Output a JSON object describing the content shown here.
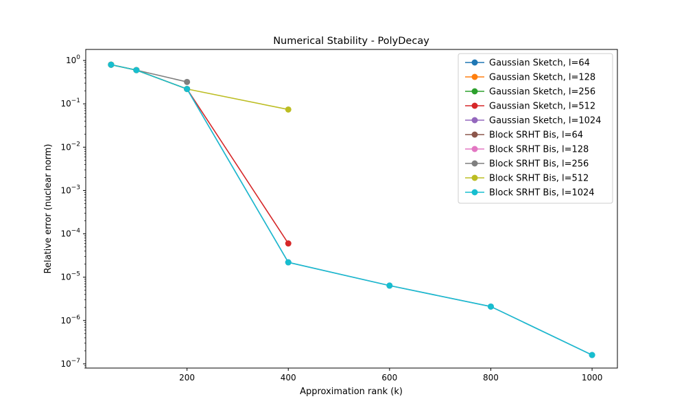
{
  "chart_data": {
    "type": "line",
    "title": "Numerical Stability - PolyDecay",
    "xlabel": "Approximation rank (k)",
    "ylabel": "Relative error (nuclear norm)",
    "y_scale": "log",
    "xlim": [
      0,
      1050
    ],
    "ylim": [
      8e-08,
      1.8
    ],
    "x_ticks": [
      200,
      400,
      600,
      800,
      1000
    ],
    "y_ticks": [
      {
        "value": 1,
        "base": "10",
        "exp": "0"
      },
      {
        "value": 0.1,
        "base": "10",
        "exp": "−1"
      },
      {
        "value": 0.01,
        "base": "10",
        "exp": "−2"
      },
      {
        "value": 0.001,
        "base": "10",
        "exp": "−3"
      },
      {
        "value": 0.0001,
        "base": "10",
        "exp": "−4"
      },
      {
        "value": 1e-05,
        "base": "10",
        "exp": "−5"
      },
      {
        "value": 1e-06,
        "base": "10",
        "exp": "−6"
      },
      {
        "value": 1e-07,
        "base": "10",
        "exp": "−7"
      }
    ],
    "grid": false,
    "legend_position": "top-right",
    "series": [
      {
        "name": "Gaussian Sketch, l=64",
        "color": "#1f77b4",
        "x": [
          50
        ],
        "y": [
          0.8
        ]
      },
      {
        "name": "Gaussian Sketch, l=128",
        "color": "#ff7f0e",
        "x": [
          50,
          100
        ],
        "y": [
          0.8,
          0.6
        ]
      },
      {
        "name": "Gaussian Sketch, l=256",
        "color": "#2ca02c",
        "x": [
          50,
          100,
          200
        ],
        "y": [
          0.8,
          0.6,
          0.22
        ]
      },
      {
        "name": "Gaussian Sketch, l=512",
        "color": "#d62728",
        "x": [
          50,
          100,
          200,
          400
        ],
        "y": [
          0.8,
          0.6,
          0.22,
          6e-05
        ]
      },
      {
        "name": "Gaussian Sketch, l=1024",
        "color": "#9467bd",
        "x": [
          50,
          100,
          200,
          400,
          600,
          800,
          1000
        ],
        "y": [
          0.8,
          0.6,
          0.22,
          2.2e-05,
          6.4e-06,
          2.1e-06,
          1.6e-07
        ]
      },
      {
        "name": "Block SRHT Bis, l=64",
        "color": "#8c564b",
        "x": [
          50
        ],
        "y": [
          0.8
        ]
      },
      {
        "name": "Block SRHT Bis, l=128",
        "color": "#e377c2",
        "x": [
          50,
          100
        ],
        "y": [
          0.8,
          0.6
        ]
      },
      {
        "name": "Block SRHT Bis, l=256",
        "color": "#7f7f7f",
        "x": [
          50,
          100,
          200
        ],
        "y": [
          0.8,
          0.6,
          0.32
        ]
      },
      {
        "name": "Block SRHT Bis, l=512",
        "color": "#bcbd22",
        "x": [
          50,
          100,
          200,
          400
        ],
        "y": [
          0.8,
          0.6,
          0.22,
          0.074
        ]
      },
      {
        "name": "Block SRHT Bis, l=1024",
        "color": "#17becf",
        "x": [
          50,
          100,
          200,
          400,
          600,
          800,
          1000
        ],
        "y": [
          0.8,
          0.6,
          0.22,
          2.2e-05,
          6.4e-06,
          2.1e-06,
          1.6e-07
        ]
      }
    ]
  }
}
